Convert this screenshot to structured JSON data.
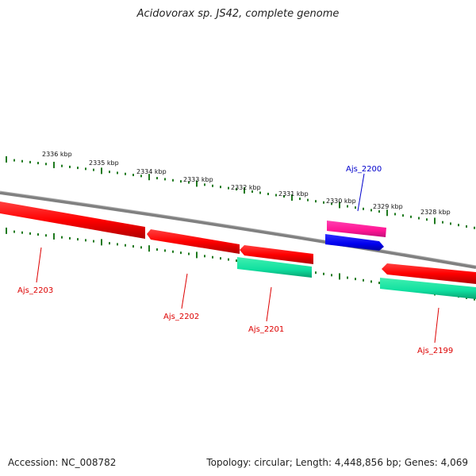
{
  "title": "Acidovorax sp. JS42, complete genome",
  "footer": {
    "accession": "Accession: NC_008782",
    "summary": "Topology: circular; Length: 4,448,856 bp; Genes: 4,069"
  },
  "colors": {
    "backbone": "#808080",
    "tick": "#1f7a1f",
    "cds_forward": "#ff00ff",
    "cds_reverse": "#ff1010",
    "gene_reverse": "#20e0a0",
    "gene_forward": "#0000ee",
    "label_forward": "#0000cc",
    "label_reverse": "#dd0000"
  },
  "ticks": [
    {
      "label": "2336 kbp",
      "kbp": 2336
    },
    {
      "label": "2335 kbp",
      "kbp": 2335
    },
    {
      "label": "2334 kbp",
      "kbp": 2334
    },
    {
      "label": "2333 kbp",
      "kbp": 2333
    },
    {
      "label": "2332 kbp",
      "kbp": 2332
    },
    {
      "label": "2331 kbp",
      "kbp": 2331
    },
    {
      "label": "2330 kbp",
      "kbp": 2330
    },
    {
      "label": "2329 kbp",
      "kbp": 2329
    },
    {
      "label": "2328 kbp",
      "kbp": 2328
    }
  ],
  "genes": [
    {
      "name": "Ajs_2200",
      "strand": "+",
      "label_color": "label_forward"
    },
    {
      "name": "Ajs_2203",
      "strand": "-",
      "label_color": "label_reverse"
    },
    {
      "name": "Ajs_2202",
      "strand": "-",
      "label_color": "label_reverse"
    },
    {
      "name": "Ajs_2201",
      "strand": "-",
      "label_color": "label_reverse"
    },
    {
      "name": "Ajs_2199",
      "strand": "-",
      "label_color": "label_reverse"
    }
  ]
}
